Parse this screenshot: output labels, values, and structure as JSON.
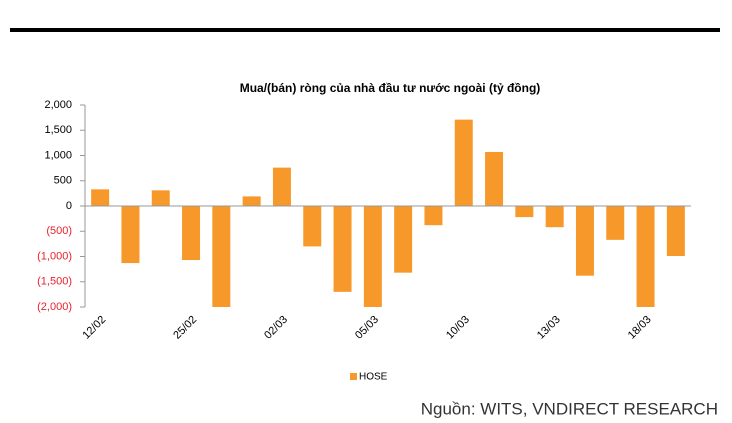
{
  "chart_data": {
    "type": "bar",
    "title": "Mua/(bán) ròng của nhà đầu tư nước ngoài (tỷ đồng)",
    "categories": [
      "12/02",
      null,
      null,
      "25/02",
      null,
      null,
      "02/03",
      null,
      null,
      "05/03",
      null,
      null,
      "10/03",
      null,
      null,
      "13/03",
      null,
      null,
      "18/03",
      null
    ],
    "series": [
      {
        "name": "HOSE",
        "color": "#f7982a",
        "values": [
          330,
          -1130,
          310,
          -1070,
          -2000,
          190,
          760,
          -800,
          -1700,
          -2000,
          -1320,
          -380,
          1710,
          1070,
          -220,
          -420,
          -1380,
          -670,
          -2000,
          -990
        ]
      }
    ],
    "ylim": [
      -2000,
      2000
    ],
    "yticks": [
      {
        "value": 2000,
        "label": "2,000"
      },
      {
        "value": 1500,
        "label": "1,500"
      },
      {
        "value": 1000,
        "label": "1,000"
      },
      500,
      0,
      {
        "value": -500,
        "label": "(500)"
      },
      {
        "value": -1000,
        "label": "(1,000)"
      },
      {
        "value": -1500,
        "label": "(1,500)"
      },
      {
        "value": -2000,
        "label": "(2,000)"
      }
    ],
    "negative_tick_color": "#e8202a",
    "legend": "bottom",
    "source": "Nguồn:  WITS, VNDIRECT RESEARCH"
  }
}
